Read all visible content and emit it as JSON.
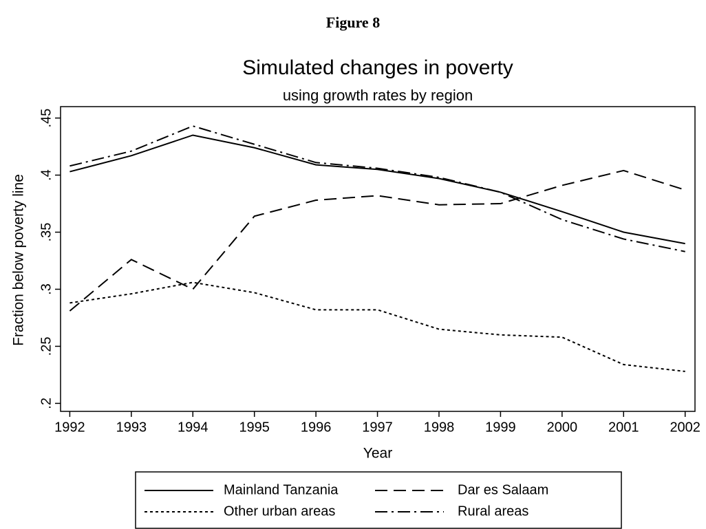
{
  "figure_label": "Figure 8",
  "chart_data": {
    "type": "line",
    "title": "Simulated changes in poverty",
    "subtitle": "using growth rates by region",
    "x_label": "Year",
    "y_label": "Fraction below poverty line",
    "x": [
      1992,
      1993,
      1994,
      1995,
      1996,
      1997,
      1998,
      1999,
      2000,
      2001,
      2002
    ],
    "xlim": [
      1991.85,
      2002.16
    ],
    "xticks": [
      1992,
      1993,
      1994,
      1995,
      1996,
      1997,
      1998,
      1999,
      2000,
      2001,
      2002
    ],
    "ylim": [
      0.193,
      0.46
    ],
    "yticks": [
      {
        "value": 0.2,
        "label": ".2"
      },
      {
        "value": 0.25,
        "label": ".25"
      },
      {
        "value": 0.3,
        "label": ".3"
      },
      {
        "value": 0.35,
        "label": ".35"
      },
      {
        "value": 0.4,
        "label": ".4"
      },
      {
        "value": 0.45,
        "label": ".45"
      }
    ],
    "series": [
      {
        "name": "Mainland Tanzania",
        "color": "#000000",
        "dash": "none",
        "values": [
          0.403,
          0.417,
          0.435,
          0.424,
          0.409,
          0.405,
          0.397,
          0.385,
          0.368,
          0.35,
          0.34
        ]
      },
      {
        "name": "Dar es Salaam",
        "color": "#000000",
        "dash": "18 9",
        "values": [
          0.281,
          0.326,
          0.3,
          0.364,
          0.378,
          0.382,
          0.374,
          0.375,
          0.391,
          0.404,
          0.387
        ]
      },
      {
        "name": "Other urban areas",
        "color": "#000000",
        "dash": "4 4",
        "values": [
          0.288,
          0.296,
          0.306,
          0.297,
          0.282,
          0.282,
          0.265,
          0.26,
          0.258,
          0.234,
          0.228
        ]
      },
      {
        "name": "Rural areas",
        "color": "#000000",
        "dash": "18 6 3 6",
        "values": [
          0.408,
          0.421,
          0.443,
          0.427,
          0.411,
          0.406,
          0.398,
          0.385,
          0.361,
          0.344,
          0.333
        ]
      }
    ]
  }
}
